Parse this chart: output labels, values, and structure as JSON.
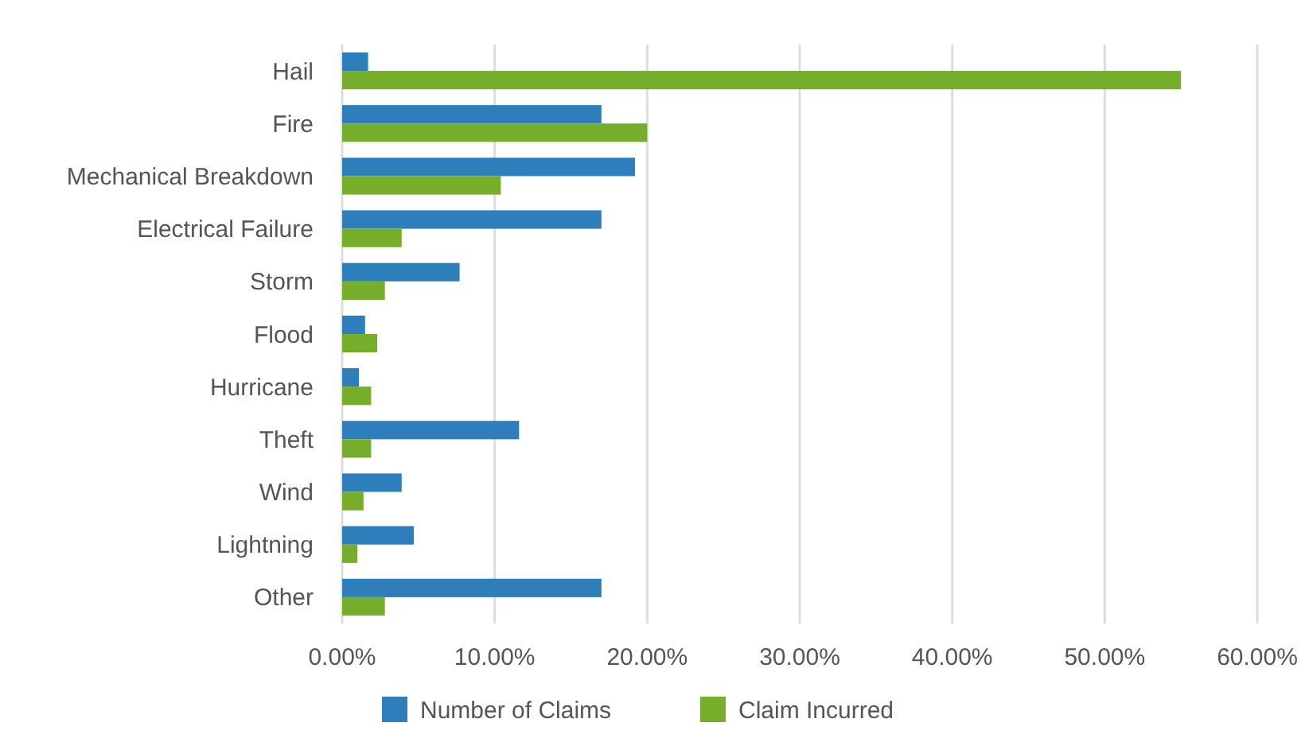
{
  "chart_data": {
    "type": "bar",
    "orientation": "horizontal",
    "categories": [
      "Hail",
      "Fire",
      "Mechanical Breakdown",
      "Electrical Failure",
      "Storm",
      "Flood",
      "Hurricane",
      "Theft",
      "Wind",
      "Lightning",
      "Other"
    ],
    "series": [
      {
        "name": "Number of Claims",
        "color": "#2e7ebc",
        "values": [
          1.7,
          17.0,
          19.2,
          17.0,
          7.7,
          1.5,
          1.1,
          11.6,
          3.9,
          4.7,
          17.0
        ]
      },
      {
        "name": "Claim Incurred",
        "color": "#76ad2b",
        "values": [
          55.0,
          20.0,
          10.4,
          3.9,
          2.8,
          2.3,
          1.9,
          1.9,
          1.4,
          1.0,
          2.8
        ]
      }
    ],
    "xlim": [
      0,
      60
    ],
    "xticks": [
      {
        "value": 0,
        "label": "0.00%"
      },
      {
        "value": 10,
        "label": "10.00%"
      },
      {
        "value": 20,
        "label": "20.00%"
      },
      {
        "value": 30,
        "label": "30.00%"
      },
      {
        "value": 40,
        "label": "40.00%"
      },
      {
        "value": 50,
        "label": "50.00%"
      },
      {
        "value": 60,
        "label": "60.00%"
      }
    ],
    "grid": "x",
    "legend": "bottom"
  }
}
